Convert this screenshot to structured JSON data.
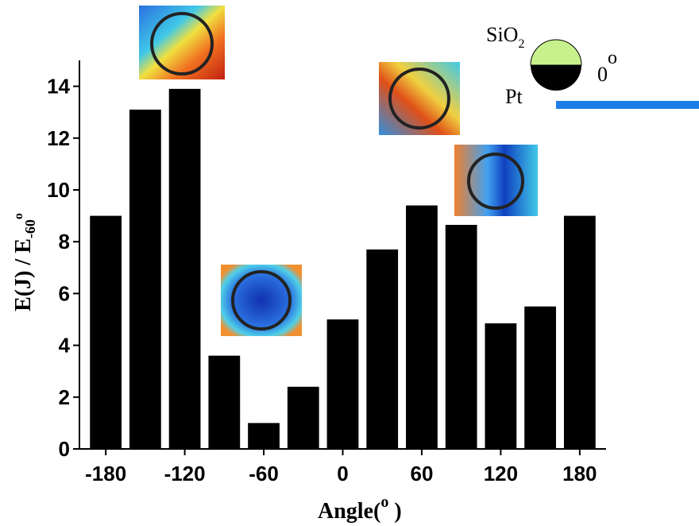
{
  "chart_data": {
    "type": "bar",
    "x": [
      -180,
      -150,
      -120,
      -90,
      -60,
      -30,
      0,
      30,
      60,
      90,
      120,
      150,
      180
    ],
    "values": [
      9.0,
      13.1,
      13.9,
      3.6,
      1.0,
      2.4,
      5.0,
      7.7,
      9.4,
      8.65,
      4.85,
      5.5,
      9.0
    ],
    "color": "#000000",
    "xlim": [
      -200,
      200
    ],
    "xticks": [
      -180,
      -120,
      -60,
      0,
      60,
      120,
      180
    ],
    "ylim": [
      0,
      15
    ],
    "yticks": [
      0,
      2,
      4,
      6,
      8,
      10,
      12,
      14
    ],
    "x_label": {
      "main": "Angle(",
      "sup": "o",
      "end": " )"
    },
    "y_label": {
      "main": "E(J) / E",
      "sub": "-60",
      "sup": "o"
    },
    "inset": {
      "top_material": "SiO",
      "top_sub": "2",
      "bottom_material": "Pt",
      "angle": "0",
      "angle_sup": "o"
    }
  }
}
